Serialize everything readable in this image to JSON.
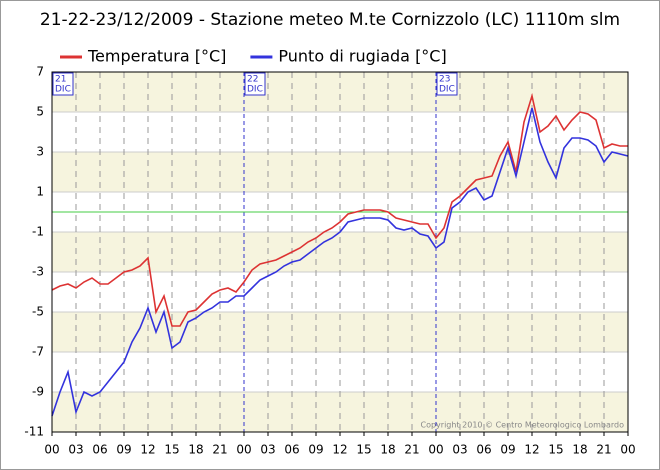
{
  "chart_data": {
    "type": "line",
    "title": "21-22-23/12/2009 - Stazione meteo M.te Cornizzolo (LC) 1110m slm",
    "credit": "Copyright 2010 © Centro Meteorologico Lombardo",
    "x": [
      0,
      1,
      2,
      3,
      4,
      5,
      6,
      7,
      8,
      9,
      10,
      11,
      12,
      13,
      14,
      15,
      16,
      17,
      18,
      19,
      20,
      21,
      22,
      23,
      24,
      25,
      26,
      27,
      28,
      29,
      30,
      31,
      32,
      33,
      34,
      35,
      36,
      37,
      38,
      39,
      40,
      41,
      42,
      43,
      44,
      45,
      46,
      47,
      48,
      49,
      50,
      51,
      52,
      53,
      54,
      55,
      56,
      57,
      58,
      59,
      60,
      61,
      62,
      63,
      64,
      65,
      66,
      67,
      68,
      69,
      70,
      71,
      72
    ],
    "series": [
      {
        "name": "Temperatura [°C]",
        "color": "#dd3333",
        "values": [
          -3.9,
          -3.7,
          -3.6,
          -3.8,
          -3.5,
          -3.3,
          -3.6,
          -3.6,
          -3.3,
          -3.0,
          -2.9,
          -2.7,
          -2.3,
          -5.0,
          -4.2,
          -5.7,
          -5.7,
          -5.0,
          -4.9,
          -4.5,
          -4.1,
          -3.9,
          -3.8,
          -4.0,
          -3.5,
          -2.9,
          -2.6,
          -2.5,
          -2.4,
          -2.2,
          -2.0,
          -1.8,
          -1.5,
          -1.3,
          -1.0,
          -0.8,
          -0.5,
          -0.1,
          0.0,
          0.1,
          0.1,
          0.1,
          0.0,
          -0.3,
          -0.4,
          -0.5,
          -0.6,
          -0.6,
          -1.3,
          -0.8,
          0.5,
          0.8,
          1.2,
          1.6,
          1.7,
          1.8,
          2.8,
          3.5,
          2.0,
          4.5,
          5.8,
          4.0,
          4.3,
          4.8,
          4.1,
          4.6,
          5.0,
          4.9,
          4.6,
          3.2,
          3.4,
          3.3,
          3.3
        ]
      },
      {
        "name": "Punto di rugiada [°C]",
        "color": "#3333dd",
        "values": [
          -10.2,
          -9.0,
          -8.0,
          -10.0,
          -9.0,
          -9.2,
          -9.0,
          -8.5,
          -8.0,
          -7.5,
          -6.5,
          -5.8,
          -4.8,
          -6.0,
          -5.0,
          -6.8,
          -6.5,
          -5.5,
          -5.3,
          -5.0,
          -4.8,
          -4.5,
          -4.5,
          -4.2,
          -4.2,
          -3.8,
          -3.4,
          -3.2,
          -3.0,
          -2.7,
          -2.5,
          -2.4,
          -2.1,
          -1.8,
          -1.5,
          -1.3,
          -1.0,
          -0.5,
          -0.4,
          -0.3,
          -0.3,
          -0.3,
          -0.4,
          -0.8,
          -0.9,
          -0.8,
          -1.1,
          -1.2,
          -1.8,
          -1.5,
          0.2,
          0.5,
          1.0,
          1.2,
          0.6,
          0.8,
          2.0,
          3.2,
          1.8,
          3.5,
          5.2,
          3.5,
          2.5,
          1.7,
          3.2,
          3.7,
          3.7,
          3.6,
          3.3,
          2.5,
          3.0,
          2.9,
          2.8
        ]
      }
    ],
    "xlim": [
      0,
      72
    ],
    "xticks": [
      {
        "value": 0,
        "label": "00"
      },
      {
        "value": 3,
        "label": "03"
      },
      {
        "value": 6,
        "label": "06"
      },
      {
        "value": 9,
        "label": "09"
      },
      {
        "value": 12,
        "label": "12"
      },
      {
        "value": 15,
        "label": "15"
      },
      {
        "value": 18,
        "label": "18"
      },
      {
        "value": 21,
        "label": "21"
      },
      {
        "value": 24,
        "label": "00"
      },
      {
        "value": 27,
        "label": "03"
      },
      {
        "value": 30,
        "label": "06"
      },
      {
        "value": 33,
        "label": "09"
      },
      {
        "value": 36,
        "label": "12"
      },
      {
        "value": 39,
        "label": "15"
      },
      {
        "value": 42,
        "label": "18"
      },
      {
        "value": 45,
        "label": "21"
      },
      {
        "value": 48,
        "label": "00"
      },
      {
        "value": 51,
        "label": "03"
      },
      {
        "value": 54,
        "label": "06"
      },
      {
        "value": 57,
        "label": "09"
      },
      {
        "value": 60,
        "label": "12"
      },
      {
        "value": 63,
        "label": "15"
      },
      {
        "value": 66,
        "label": "18"
      },
      {
        "value": 69,
        "label": "21"
      },
      {
        "value": 72,
        "label": "00"
      }
    ],
    "ylim": [
      -11,
      7
    ],
    "yticks": [
      7,
      5,
      3,
      1,
      -1,
      -3,
      -5,
      -7,
      -9,
      -11
    ],
    "day_labels": [
      {
        "value": 0,
        "day": "21",
        "month": "DIC"
      },
      {
        "value": 24,
        "day": "22",
        "month": "DIC"
      },
      {
        "value": 48,
        "day": "23",
        "month": "DIC"
      }
    ],
    "reference_line": {
      "value": 0,
      "color": "#44cc44"
    },
    "grid": true
  }
}
